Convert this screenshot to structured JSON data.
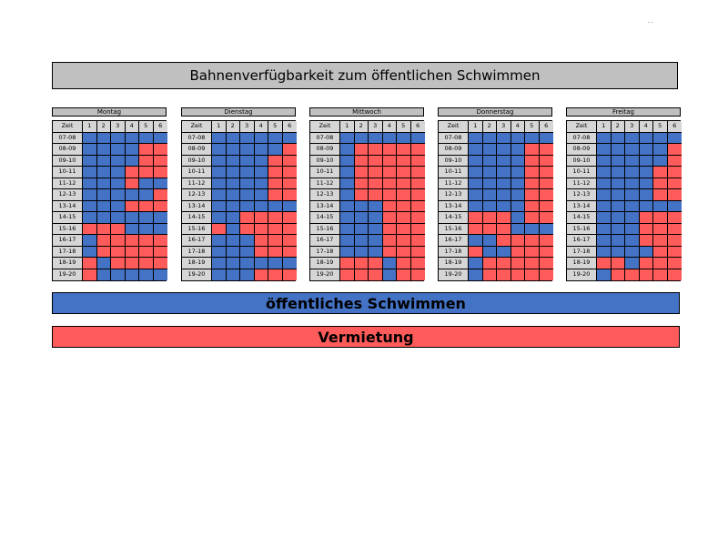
{
  "title": "Bahnenverfügbarkeit zum öffentlichen Schwimmen",
  "colors": {
    "public": "#4472c4",
    "rental": "#ff5b5b",
    "header": "#c0c0c0"
  },
  "corner_mark": ". .",
  "table": {
    "time_header": "Zeit",
    "lanes": [
      "1",
      "2",
      "3",
      "4",
      "5",
      "6"
    ],
    "times": [
      "07-08",
      "08-09",
      "09-10",
      "10-11",
      "11-12",
      "12-13",
      "13-14",
      "14-15",
      "15-16",
      "16-17",
      "17-18",
      "18-19",
      "19-20"
    ]
  },
  "days": [
    {
      "name": "Montag",
      "grid": [
        "BBBBBB",
        "BBBBRR",
        "BBBBRR",
        "BBBRRR",
        "BBBRBB",
        "BBBBBR",
        "BBBRRR",
        "BBBBBB",
        "RRRBBB",
        "BRRRRR",
        "BRRRRR",
        "RBRRRR",
        "RBBBBB"
      ]
    },
    {
      "name": "Dienstag",
      "grid": [
        "BBBBBB",
        "BBBBBR",
        "BBBBRR",
        "BBBBRR",
        "BBBBRR",
        "BBBBRR",
        "BBBBBB",
        "BBRRRR",
        "RBRRRR",
        "BBBRRR",
        "BBBRRR",
        "BBBBBB",
        "BBBRRR"
      ]
    },
    {
      "name": "Mittwoch",
      "grid": [
        "BBBBBB",
        "BRRRRR",
        "BRRRRR",
        "BRRRRR",
        "BRRRRR",
        "BRRRRR",
        "BBBRRR",
        "BBBRRR",
        "BBBRRR",
        "BBBRRR",
        "BBBRRR",
        "RRRBRR",
        "RRRBRR"
      ]
    },
    {
      "name": "Donnerstag",
      "grid": [
        "BBBBBB",
        "BBBBRR",
        "BBBBRR",
        "BBBBRR",
        "BBBBRR",
        "BBBBRR",
        "BBBBRR",
        "RRRBRR",
        "RRRBBB",
        "BBRRRR",
        "RBBRRR",
        "BRRRRR",
        "BRRRRR"
      ]
    },
    {
      "name": "Freitag",
      "grid": [
        "BBBBBB",
        "BBBBBR",
        "BBBBBR",
        "BBBBRR",
        "BBBBRR",
        "BBBBRR",
        "BBBBBB",
        "BBBRRR",
        "BBBRRR",
        "BBBRRR",
        "BBBBRR",
        "RRBRRR",
        "BRRRRR"
      ]
    }
  ],
  "legend": {
    "public_label": "öffentliches Schwimmen",
    "rental_label": "Vermietung"
  }
}
